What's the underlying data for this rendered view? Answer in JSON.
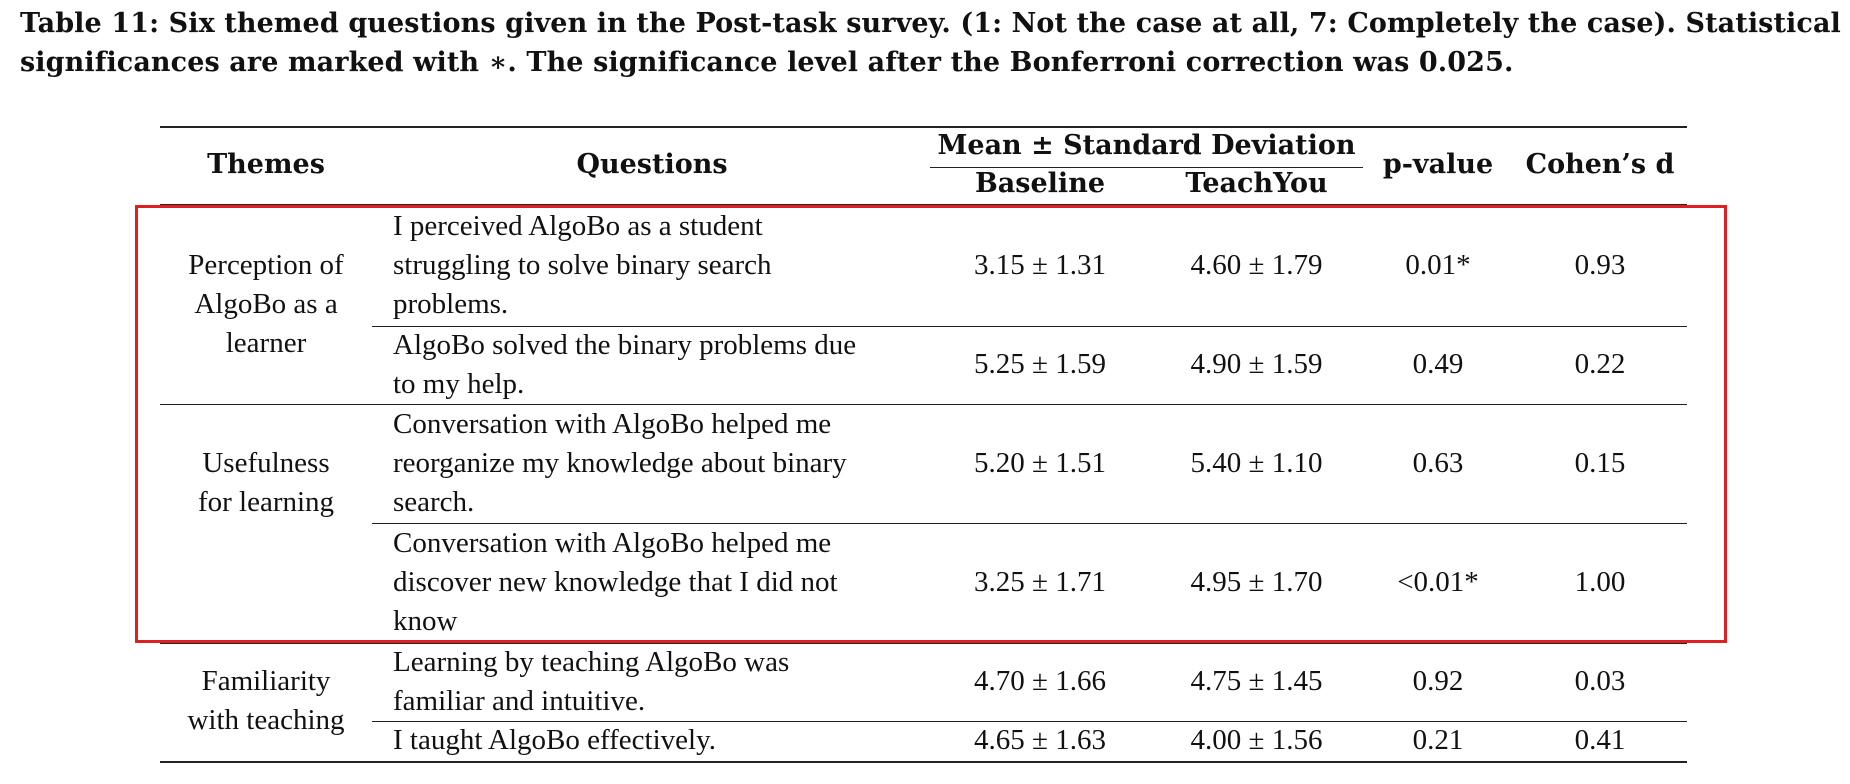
{
  "caption": {
    "line1": "Table 11: Six themed questions given in the Post-task survey. (1: Not the case at all, 7: Completely the case). Statistical",
    "line2": "significances are marked with ∗. The significance level after the Bonferroni correction was 0.025."
  },
  "table": {
    "headers": {
      "themes": "Themes",
      "questions": "Questions",
      "mean_sd": "Mean ± Standard Deviation",
      "baseline": "Baseline",
      "teachyou": "TeachYou",
      "pvalue": "p-value",
      "cohens_d": "Cohen’s d"
    },
    "themes": [
      {
        "line1": "Perception of",
        "line2": "AlgoBo as a",
        "line3": "learner"
      },
      {
        "line1": "Usefulness",
        "line2": "for learning"
      },
      {
        "line1": "Familiarity",
        "line2": "with teaching"
      }
    ],
    "rows": [
      {
        "q": [
          "I perceived AlgoBo as a student",
          "struggling to solve binary search",
          "problems."
        ],
        "baseline": "3.15 ± 1.31",
        "teachyou": "4.60 ± 1.79",
        "p": "0.01*",
        "d": "0.93"
      },
      {
        "q": [
          "AlgoBo solved the binary problems due",
          "to my help."
        ],
        "baseline": "5.25 ± 1.59",
        "teachyou": "4.90 ± 1.59",
        "p": "0.49",
        "d": "0.22"
      },
      {
        "q": [
          "Conversation with AlgoBo helped me",
          "reorganize my knowledge about binary",
          "search."
        ],
        "baseline": "5.20 ± 1.51",
        "teachyou": "5.40 ± 1.10",
        "p": "0.63",
        "d": "0.15"
      },
      {
        "q": [
          "Conversation with AlgoBo helped me",
          "discover new knowledge that I did not",
          "know"
        ],
        "baseline": "3.25 ± 1.71",
        "teachyou": "4.95 ± 1.70",
        "p": "<0.01*",
        "d": "1.00"
      },
      {
        "q": [
          "Learning by teaching AlgoBo was",
          "familiar and intuitive."
        ],
        "baseline": "4.70 ± 1.66",
        "teachyou": "4.75 ± 1.45",
        "p": "0.92",
        "d": "0.03"
      },
      {
        "q": [
          "I taught AlgoBo effectively."
        ],
        "baseline": "4.65 ± 1.63",
        "teachyou": "4.00 ± 1.56",
        "p": "0.21",
        "d": "0.41"
      }
    ]
  },
  "highlight_color": "#e02020"
}
